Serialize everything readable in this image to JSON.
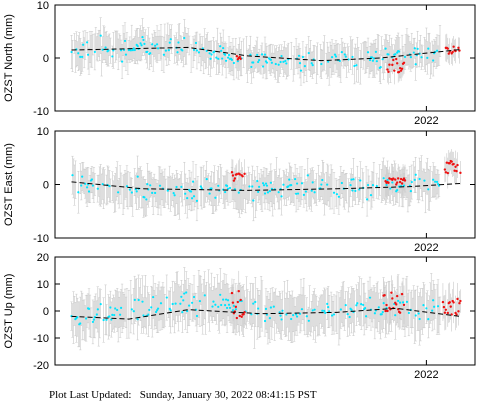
{
  "footer": {
    "label": "Plot Last Updated:",
    "timestamp": "Sunday, January 30, 2022 08:41:15 PST"
  },
  "colors": {
    "primary_points": "#00e5ff",
    "recent_points": "#ee1111",
    "error_bars": "#c8c8c8",
    "trend_line": "#000000",
    "frame": "#000000"
  },
  "chart_data": [
    {
      "type": "scatter",
      "ylabel": "OZST North (mm)",
      "ylim": [
        -10,
        10
      ],
      "yticks": [
        -10,
        0,
        10
      ],
      "xlim": [
        "2020-12-15",
        "2022-02-20"
      ],
      "xtick_label": "2022",
      "grid": false,
      "series": [
        {
          "kind": "daily_position",
          "color": "#00e5ff",
          "x_range": [
            "2021-01-01",
            "2022-01-15"
          ],
          "typical_error_mm": 2.5,
          "profile": [
            [
              0.0,
              1.5
            ],
            [
              0.1,
              1.8
            ],
            [
              0.3,
              2.2
            ],
            [
              0.42,
              0.5
            ],
            [
              0.55,
              -0.2
            ],
            [
              0.7,
              -0.4
            ],
            [
              0.8,
              0.2
            ],
            [
              0.9,
              0.8
            ],
            [
              1.0,
              1.3
            ]
          ]
        },
        {
          "kind": "recent_flagged",
          "color": "#ee1111",
          "clusters": [
            {
              "x": [
                "2021-06-20",
                "2021-06-24"
              ],
              "y_center": 0.3,
              "spread": 0.6
            },
            {
              "x": [
                "2021-11-22",
                "2021-12-10"
              ],
              "y_center": -1.5,
              "spread": 1.4
            },
            {
              "x": [
                "2022-01-20",
                "2022-02-05"
              ],
              "y_center": 1.3,
              "spread": 0.9
            }
          ]
        },
        {
          "kind": "trend",
          "style": "dashed",
          "color": "#000000",
          "points": [
            [
              "2021-01-01",
              1.5
            ],
            [
              "2021-05-01",
              2.0
            ],
            [
              "2021-07-01",
              0.4
            ],
            [
              "2021-09-15",
              -0.5
            ],
            [
              "2021-11-15",
              0.0
            ],
            [
              "2022-02-05",
              1.6
            ]
          ]
        }
      ]
    },
    {
      "type": "scatter",
      "ylabel": "OZST East (mm)",
      "ylim": [
        -10,
        10
      ],
      "yticks": [
        -10,
        0,
        10
      ],
      "xlim": [
        "2020-12-15",
        "2022-02-20"
      ],
      "xtick_label": "2022",
      "grid": false,
      "series": [
        {
          "kind": "daily_position",
          "color": "#00e5ff",
          "x_range": [
            "2021-01-01",
            "2022-01-15"
          ],
          "typical_error_mm": 2.8,
          "profile": [
            [
              0.0,
              0.5
            ],
            [
              0.15,
              -1.0
            ],
            [
              0.3,
              -1.2
            ],
            [
              0.45,
              -1.0
            ],
            [
              0.6,
              -0.8
            ],
            [
              0.75,
              -0.7
            ],
            [
              0.9,
              -0.3
            ],
            [
              1.0,
              0.2
            ]
          ]
        },
        {
          "kind": "recent_flagged",
          "color": "#ee1111",
          "clusters": [
            {
              "x": [
                "2021-06-15",
                "2021-06-28"
              ],
              "y_center": 1.5,
              "spread": 0.8
            },
            {
              "x": [
                "2021-11-20",
                "2021-12-10"
              ],
              "y_center": 0.8,
              "spread": 0.8
            },
            {
              "x": [
                "2022-01-20",
                "2022-02-05"
              ],
              "y_center": 3.2,
              "spread": 1.2
            }
          ]
        },
        {
          "kind": "trend",
          "style": "dashed",
          "color": "#000000",
          "points": [
            [
              "2021-01-01",
              0.5
            ],
            [
              "2021-03-15",
              -0.8
            ],
            [
              "2021-07-01",
              -1.1
            ],
            [
              "2021-10-01",
              -0.8
            ],
            [
              "2021-12-15",
              -0.4
            ],
            [
              "2022-02-05",
              0.2
            ]
          ]
        }
      ]
    },
    {
      "type": "scatter",
      "ylabel": "OZST Up (mm)",
      "ylim": [
        -20,
        20
      ],
      "yticks": [
        -20,
        -10,
        0,
        10,
        20
      ],
      "xlim": [
        "2020-12-15",
        "2022-02-20"
      ],
      "xtick_label": "2022",
      "grid": false,
      "series": [
        {
          "kind": "daily_position",
          "color": "#00e5ff",
          "x_range": [
            "2021-01-01",
            "2022-01-15"
          ],
          "typical_error_mm": 7.0,
          "profile": [
            [
              0.0,
              -3.0
            ],
            [
              0.1,
              -1.0
            ],
            [
              0.25,
              2.0
            ],
            [
              0.4,
              4.0
            ],
            [
              0.5,
              0.0
            ],
            [
              0.65,
              -1.0
            ],
            [
              0.8,
              1.5
            ],
            [
              0.9,
              1.0
            ],
            [
              1.0,
              0.0
            ]
          ]
        },
        {
          "kind": "recent_flagged",
          "color": "#ee1111",
          "clusters": [
            {
              "x": [
                "2021-06-15",
                "2021-06-28"
              ],
              "y_center": 3.0,
              "spread": 6.0
            },
            {
              "x": [
                "2021-11-18",
                "2021-12-10"
              ],
              "y_center": 3.0,
              "spread": 4.0
            },
            {
              "x": [
                "2022-01-18",
                "2022-02-05"
              ],
              "y_center": 1.0,
              "spread": 3.5
            }
          ]
        },
        {
          "kind": "trend",
          "style": "dashed",
          "color": "#000000",
          "points": [
            [
              "2021-01-01",
              -2.0
            ],
            [
              "2021-03-01",
              -3.0
            ],
            [
              "2021-05-01",
              0.5
            ],
            [
              "2021-07-15",
              -1.0
            ],
            [
              "2021-10-01",
              -0.5
            ],
            [
              "2021-12-01",
              1.0
            ],
            [
              "2022-02-05",
              -2.0
            ]
          ]
        }
      ]
    }
  ]
}
